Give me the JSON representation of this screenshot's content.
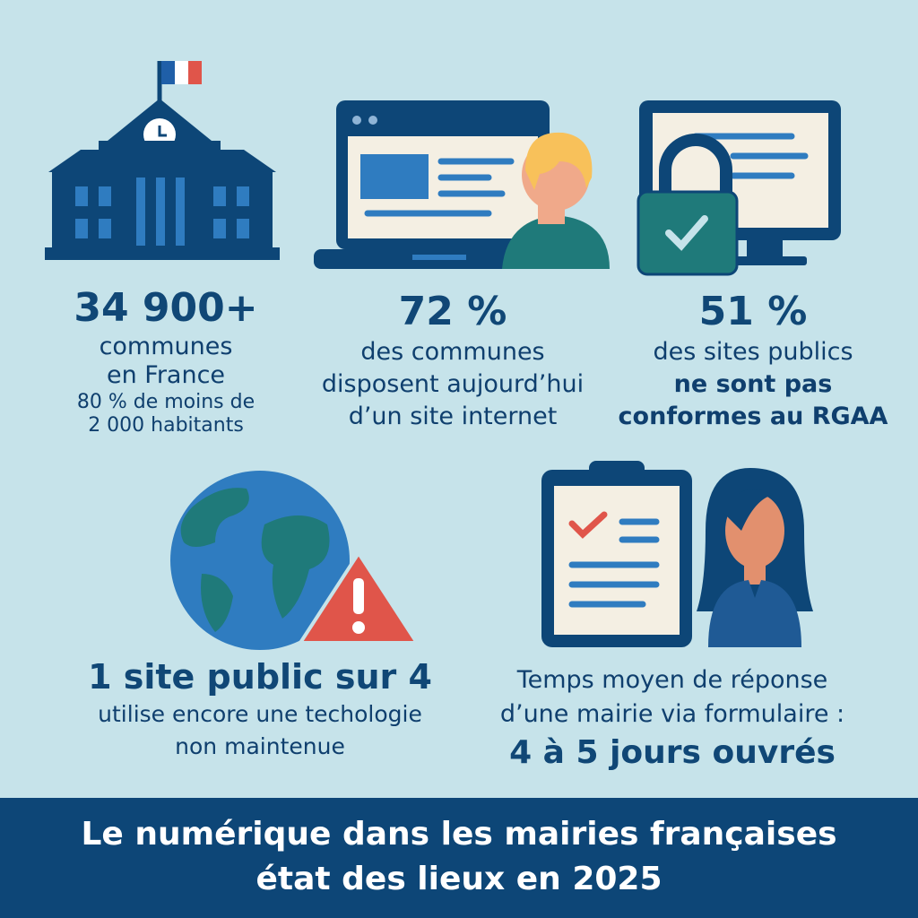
{
  "colors": {
    "background": "#c6e3ea",
    "navy": "#0d4677",
    "blue": "#2f7cc0",
    "teal": "#1f7a7a",
    "red": "#e0554a",
    "cream": "#f4efe3"
  },
  "stats": [
    {
      "icon": "town-hall-icon",
      "value": "34 900+",
      "lines": [
        "communes",
        "en France"
      ],
      "note": [
        "80 % de moins de",
        "2 000 habitants"
      ]
    },
    {
      "icon": "laptop-user-icon",
      "value": "72 %",
      "lines": [
        "des communes",
        "disposent aujourd’hui",
        "d’un site internet"
      ]
    },
    {
      "icon": "monitor-lock-icon",
      "value": "51 %",
      "lines": [
        "des sites publics",
        "ne sont pas",
        "conformes au RGAA"
      ]
    },
    {
      "icon": "globe-warning-icon",
      "value": "1 site public sur 4",
      "lines": [
        "utilise encore une techologie",
        "non maintenue"
      ]
    },
    {
      "icon": "clipboard-person-icon",
      "lines": [
        "Temps moyen de réponse",
        "d’une mairie via formulaire :"
      ],
      "value": "4 à 5 jours ouvrés"
    }
  ],
  "title": {
    "line1": "Le numérique dans les mairies françaises",
    "line2": "état des lieux en 2025"
  }
}
